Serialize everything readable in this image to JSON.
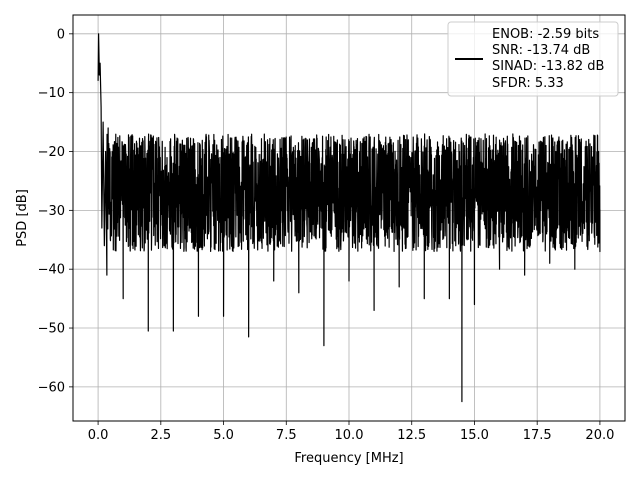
{
  "chart_data": {
    "type": "line",
    "title": "",
    "xlabel": "Frequency [MHz]",
    "ylabel": "PSD [dB]",
    "xlim": [
      -1.0,
      21.0
    ],
    "ylim": [
      -65.8,
      3.2
    ],
    "xticks": [
      0.0,
      2.5,
      5.0,
      7.5,
      10.0,
      12.5,
      15.0,
      17.5,
      20.0
    ],
    "xtick_labels": [
      "0.0",
      "2.5",
      "5.0",
      "7.5",
      "10.0",
      "12.5",
      "15.0",
      "17.5",
      "20.0"
    ],
    "yticks": [
      0,
      -10,
      -20,
      -30,
      -40,
      -50,
      -60
    ],
    "ytick_labels": [
      "0",
      "−10",
      "−20",
      "−30",
      "−40",
      "−50",
      "−60"
    ],
    "grid": true,
    "legend_position": "top-right",
    "legend_lines": [
      "ENOB: -2.59 bits",
      "SNR: -13.74 dB",
      "SINAD: -13.82 dB",
      "SFDR: 5.33"
    ],
    "series": [
      {
        "color": "#000000",
        "description": "dense noise PSD trace between about -17 and -37 dB across 0-20 MHz",
        "x": [
          0.0,
          0.02,
          0.05,
          0.08,
          0.12,
          0.15,
          0.2,
          0.25,
          0.3,
          0.35,
          0.4,
          1.0,
          2.0,
          3.0,
          4.0,
          5.0,
          6.0,
          7.0,
          8.0,
          9.0,
          10.0,
          11.0,
          12.0,
          13.0,
          14.0,
          14.5,
          15.0,
          16.0,
          17.0,
          18.0,
          19.0,
          20.0
        ],
        "y": [
          -8.0,
          0.0,
          -7.0,
          -5.0,
          -12.5,
          -33.0,
          -15.0,
          -36.0,
          -20.0,
          -41.0,
          -16.0,
          -45.0,
          -50.5,
          -50.5,
          -48.0,
          -48.0,
          -51.5,
          -42.0,
          -44.0,
          -53.0,
          -42.0,
          -47.0,
          -43.0,
          -45.0,
          -45.0,
          -62.5,
          -46.0,
          -40.0,
          -41.0,
          -39.0,
          -40.0,
          -37.0
        ],
        "band_floor": -37,
        "band_ceiling": -17
      }
    ]
  }
}
